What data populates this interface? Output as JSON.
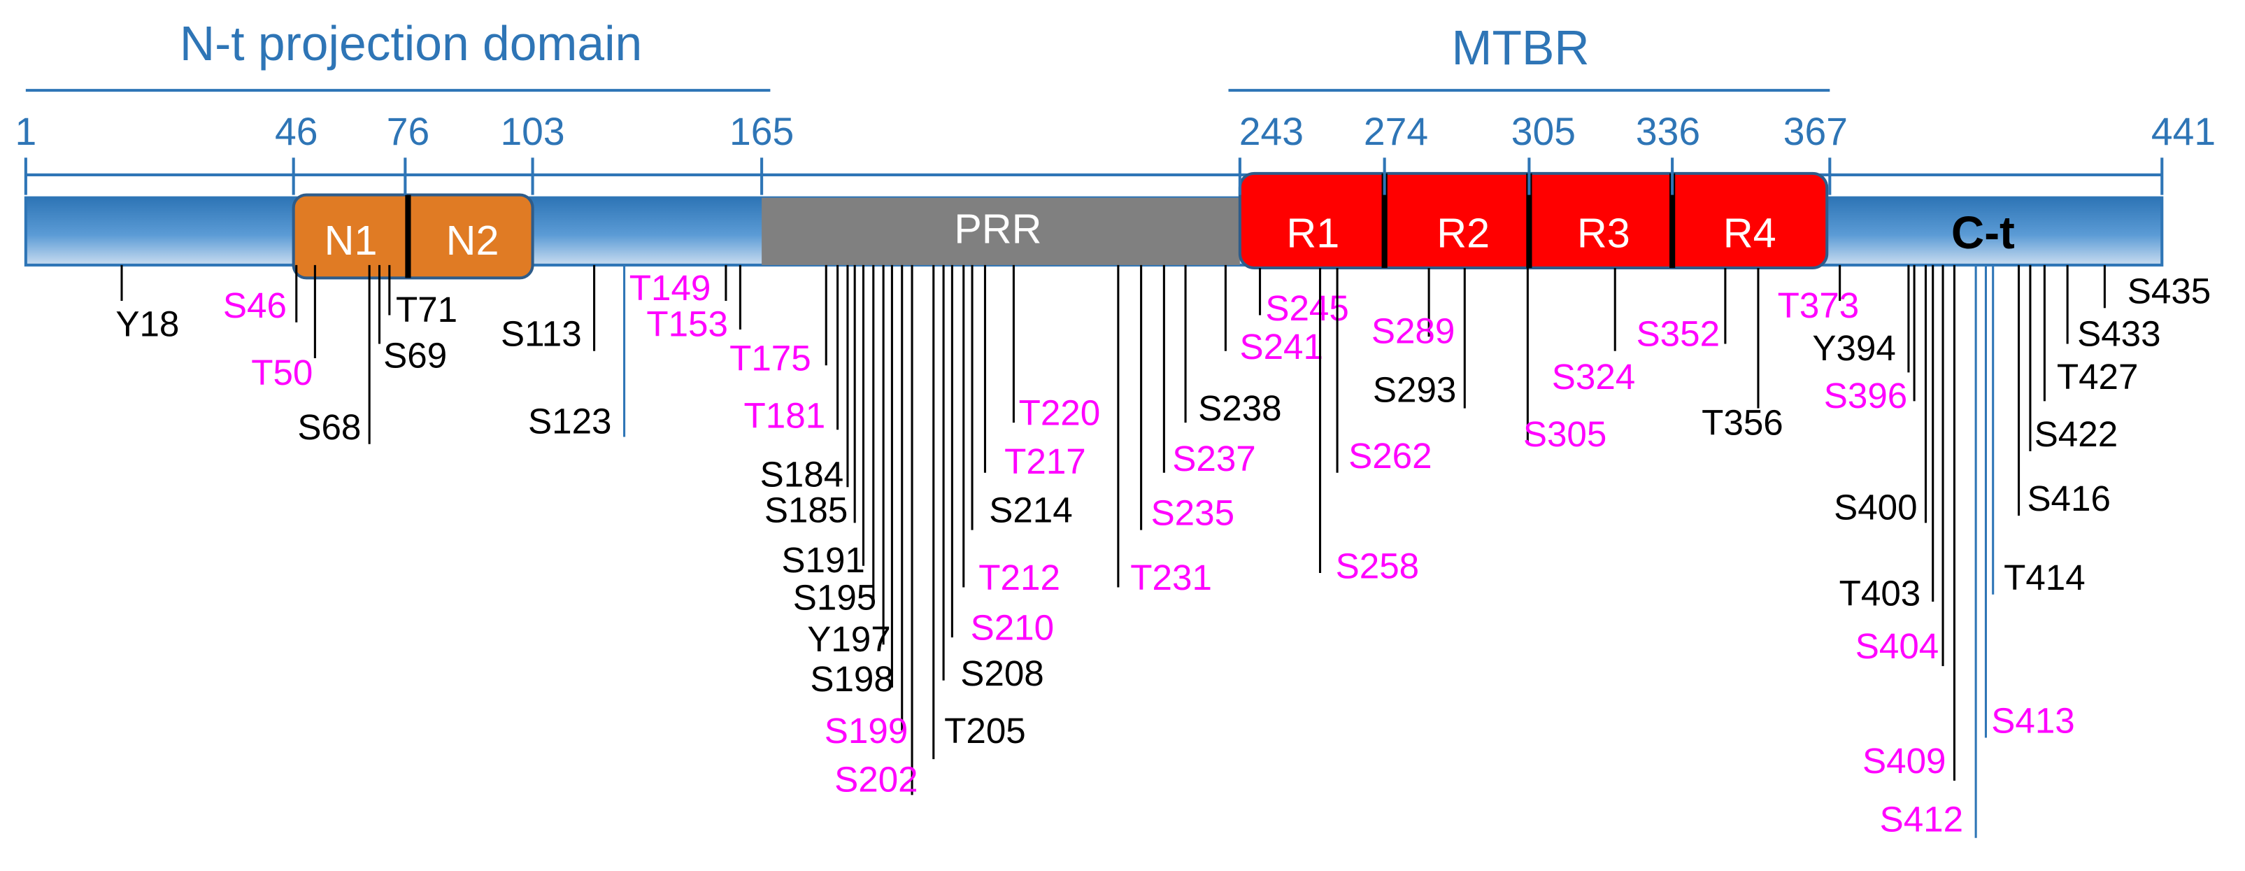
{
  "header": {
    "left_title": "N-t projection domain",
    "right_title": "MTBR"
  },
  "positions": [
    1,
    46,
    76,
    103,
    165,
    243,
    274,
    305,
    336,
    367,
    441
  ],
  "domains": [
    {
      "label": "N1"
    },
    {
      "label": "N2"
    },
    {
      "label": "PRR"
    },
    {
      "label": "R1"
    },
    {
      "label": "R2"
    },
    {
      "label": "R3"
    },
    {
      "label": "R4"
    },
    {
      "label": "C-t"
    }
  ],
  "site_colors": {
    "magenta": "#ff00ff",
    "black": "#000000"
  },
  "sites": [
    {
      "label": "Y18",
      "color": "black"
    },
    {
      "label": "S46",
      "color": "magenta"
    },
    {
      "label": "T50",
      "color": "magenta"
    },
    {
      "label": "S68",
      "color": "black"
    },
    {
      "label": "S69",
      "color": "black"
    },
    {
      "label": "T71",
      "color": "black"
    },
    {
      "label": "S113",
      "color": "black"
    },
    {
      "label": "S123",
      "color": "black"
    },
    {
      "label": "T149",
      "color": "magenta"
    },
    {
      "label": "T153",
      "color": "magenta"
    },
    {
      "label": "T175",
      "color": "magenta"
    },
    {
      "label": "T181",
      "color": "magenta"
    },
    {
      "label": "S184",
      "color": "black"
    },
    {
      "label": "S185",
      "color": "black"
    },
    {
      "label": "S191",
      "color": "black"
    },
    {
      "label": "S195",
      "color": "black"
    },
    {
      "label": "Y197",
      "color": "black"
    },
    {
      "label": "S198",
      "color": "black"
    },
    {
      "label": "S199",
      "color": "magenta"
    },
    {
      "label": "S202",
      "color": "magenta"
    },
    {
      "label": "T205",
      "color": "black"
    },
    {
      "label": "S208",
      "color": "black"
    },
    {
      "label": "S210",
      "color": "magenta"
    },
    {
      "label": "T212",
      "color": "magenta"
    },
    {
      "label": "S214",
      "color": "black"
    },
    {
      "label": "T217",
      "color": "magenta"
    },
    {
      "label": "T220",
      "color": "magenta"
    },
    {
      "label": "T231",
      "color": "magenta"
    },
    {
      "label": "S235",
      "color": "magenta"
    },
    {
      "label": "S237",
      "color": "magenta"
    },
    {
      "label": "S238",
      "color": "black"
    },
    {
      "label": "S241",
      "color": "magenta"
    },
    {
      "label": "S245",
      "color": "magenta"
    },
    {
      "label": "S258",
      "color": "magenta"
    },
    {
      "label": "S262",
      "color": "magenta"
    },
    {
      "label": "S289",
      "color": "magenta"
    },
    {
      "label": "S293",
      "color": "black"
    },
    {
      "label": "S305",
      "color": "magenta"
    },
    {
      "label": "S324",
      "color": "magenta"
    },
    {
      "label": "S352",
      "color": "magenta"
    },
    {
      "label": "T356",
      "color": "black"
    },
    {
      "label": "T373",
      "color": "magenta"
    },
    {
      "label": "Y394",
      "color": "black"
    },
    {
      "label": "S396",
      "color": "magenta"
    },
    {
      "label": "S400",
      "color": "black"
    },
    {
      "label": "T403",
      "color": "black"
    },
    {
      "label": "S404",
      "color": "magenta"
    },
    {
      "label": "S409",
      "color": "magenta"
    },
    {
      "label": "S412",
      "color": "magenta"
    },
    {
      "label": "S413",
      "color": "magenta"
    },
    {
      "label": "T414",
      "color": "black"
    },
    {
      "label": "S416",
      "color": "black"
    },
    {
      "label": "S422",
      "color": "black"
    },
    {
      "label": "T427",
      "color": "black"
    },
    {
      "label": "S433",
      "color": "black"
    },
    {
      "label": "S435",
      "color": "black"
    }
  ]
}
